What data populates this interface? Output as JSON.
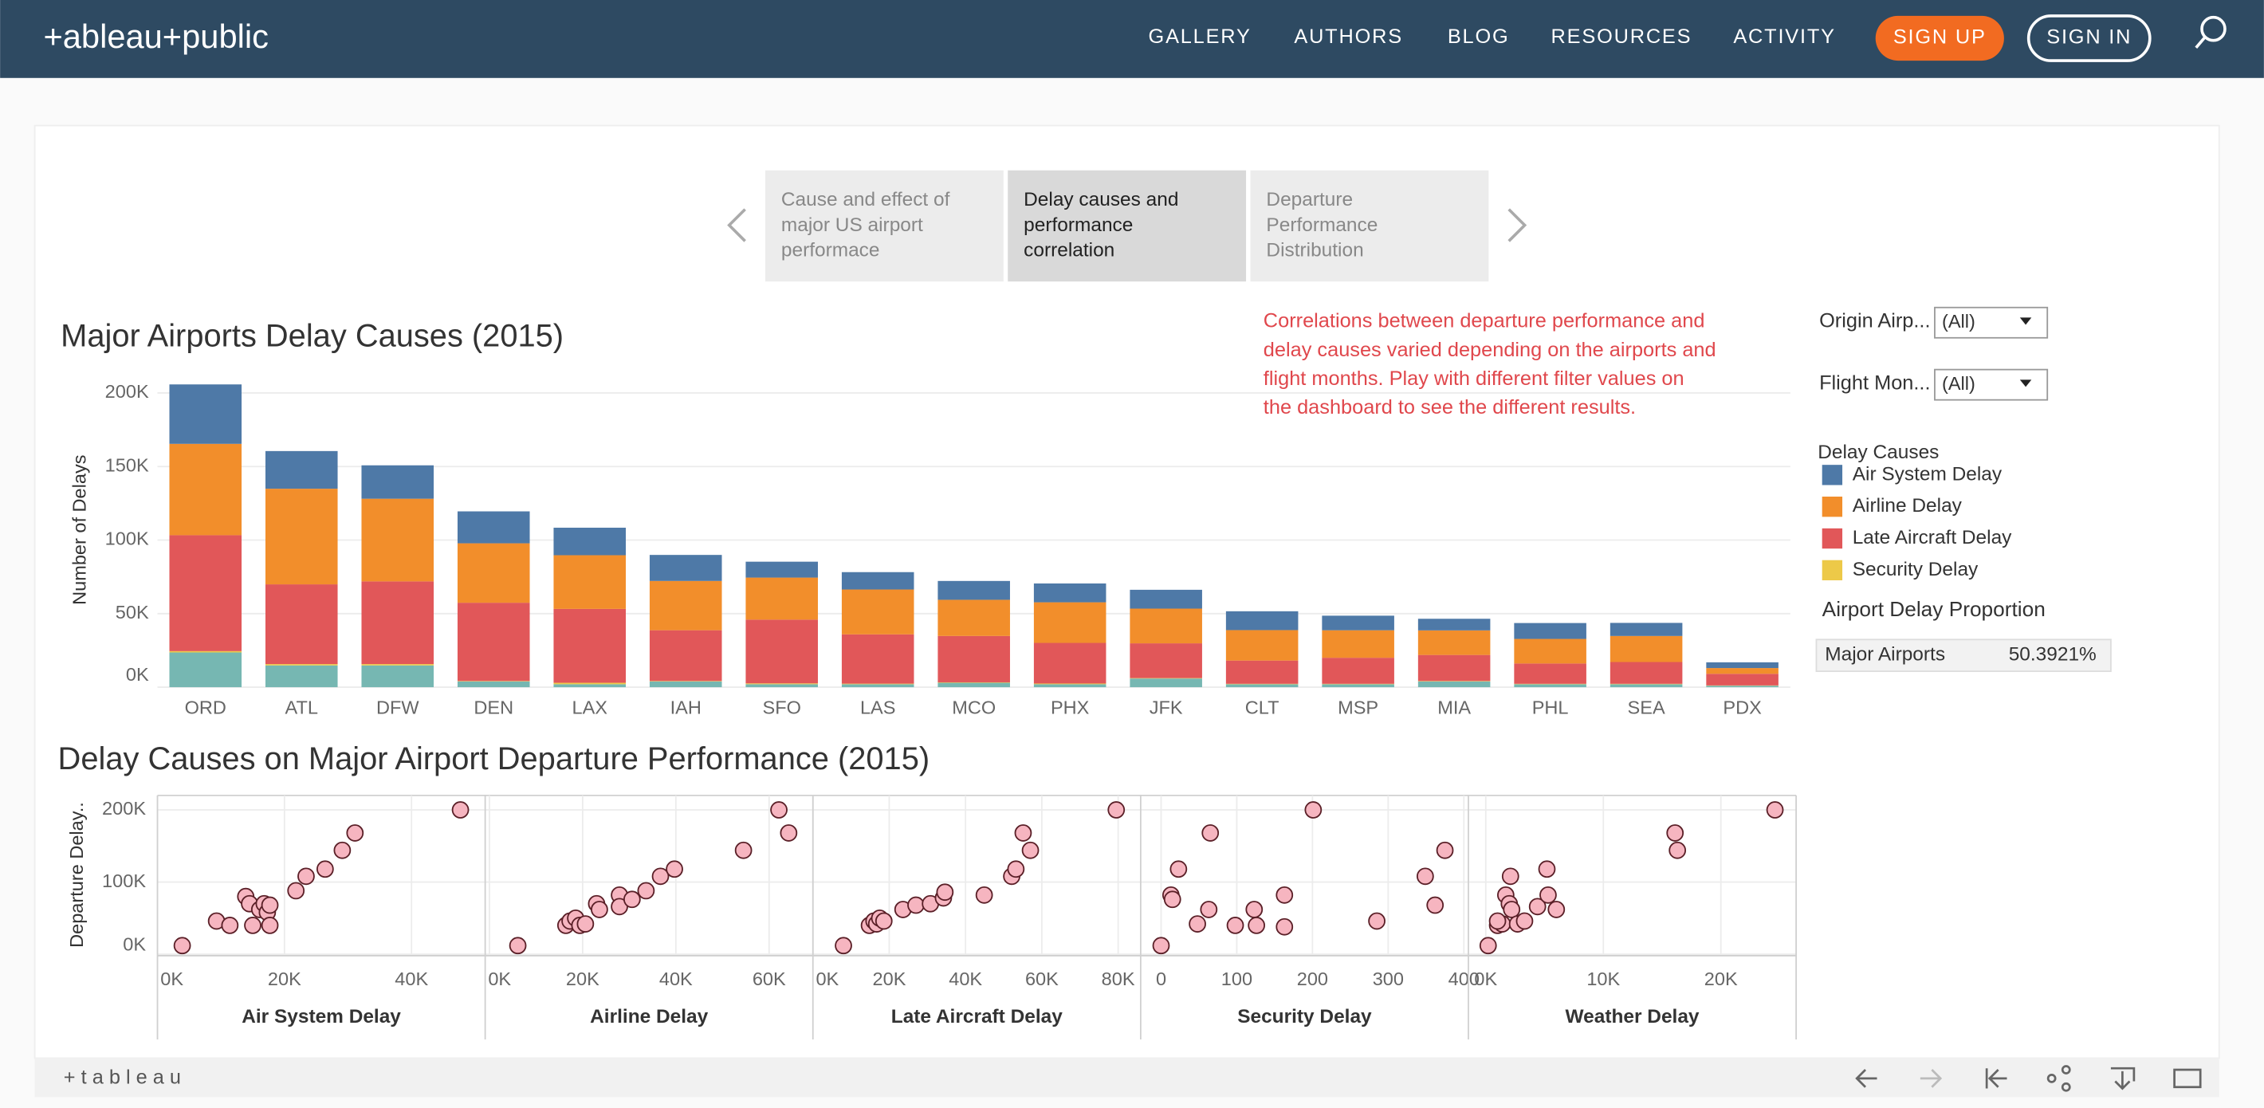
{
  "header": {
    "logo": "+ableau+public",
    "nav": [
      "GALLERY",
      "AUTHORS",
      "BLOG",
      "RESOURCES",
      "ACTIVITY"
    ],
    "sign_up": "SIGN UP",
    "sign_in": "SIGN IN"
  },
  "story_points": [
    [
      "Cause and effect of",
      "major US airport",
      "performace"
    ],
    [
      "Delay causes and",
      "performance",
      "correlation"
    ],
    [
      "Departure",
      "Performance",
      "Distribution"
    ]
  ],
  "annotation": [
    "Correlations between departure performance and",
    "delay causes varied depending on the airports and",
    "flight months. Play with different filter values on",
    "the dashboard to see the different results."
  ],
  "filters": [
    {
      "label": "Origin Airp...",
      "value": "(All)"
    },
    {
      "label": "Flight Mon...",
      "value": "(All)"
    }
  ],
  "proportion_table": {
    "title": "Airport Delay Proportion",
    "rows": [
      [
        "Major Airports",
        "50.3921%"
      ]
    ]
  },
  "footer": {
    "logo": "+ t a b l e a u"
  },
  "chart_data": [
    {
      "type": "stacked_bar",
      "title": "Major Airports Delay Causes (2015)",
      "y_label": "Number of Delays",
      "legend_title": "Delay Causes",
      "grid": true,
      "categories": [
        "ORD",
        "ATL",
        "DFW",
        "DEN",
        "LAX",
        "IAH",
        "SFO",
        "LAS",
        "MCO",
        "PHX",
        "JFK",
        "CLT",
        "MSP",
        "MIA",
        "PHL",
        "SEA",
        "PDX"
      ],
      "ylim": [
        0,
        210000
      ],
      "yticks": [
        {
          "value": 0,
          "label": "0K"
        },
        {
          "value": 50000,
          "label": "50K"
        },
        {
          "value": 100000,
          "label": "100K"
        },
        {
          "value": 150000,
          "label": "150K"
        },
        {
          "value": 200000,
          "label": "200K"
        }
      ],
      "series": [
        {
          "name": "Air System Delay",
          "color": "#4e79a7",
          "values": [
            40400,
            25600,
            22700,
            21700,
            18700,
            17700,
            10800,
            11800,
            12800,
            12800,
            12800,
            12800,
            9900,
            7900,
            10800,
            8900,
            3900
          ]
        },
        {
          "name": "Airline Delay",
          "color": "#f28e2b",
          "values": [
            62100,
            65000,
            56200,
            40400,
            36500,
            33500,
            28600,
            30500,
            24600,
            27600,
            23600,
            20700,
            18700,
            16700,
            16700,
            17700,
            3900
          ]
        },
        {
          "name": "Late Aircraft Delay",
          "color": "#e15759",
          "values": [
            78800,
            54200,
            56200,
            53200,
            50200,
            34500,
            43300,
            33500,
            31500,
            27600,
            23600,
            15800,
            17700,
            17700,
            13800,
            14800,
            7900
          ]
        },
        {
          "name": "Security Delay",
          "color": "#edc948",
          "values": [
            900,
            900,
            900,
            300,
            1000,
            300,
            600,
            400,
            300,
            500,
            300,
            300,
            300,
            300,
            300,
            300,
            200
          ]
        },
        {
          "name": "Weather Delay",
          "color": "#76b7b2",
          "values": [
            23600,
            14800,
            14800,
            3900,
            2000,
            3900,
            2000,
            2000,
            3000,
            2000,
            5900,
            2000,
            2000,
            3900,
            2000,
            2000,
            1000
          ]
        }
      ]
    },
    {
      "type": "scatter_panels",
      "title": "Delay Causes on Major Airport Departure Performance (2015)",
      "y_label": "Departure Delay..",
      "grid": true,
      "color": "#f6b5c0",
      "ylim": [
        0,
        220000
      ],
      "yticks": [
        {
          "value": 0,
          "label": "0K"
        },
        {
          "value": 100000,
          "label": "100K"
        },
        {
          "value": 200000,
          "label": "200K"
        }
      ],
      "panels": [
        {
          "x_label": "Air System Delay",
          "xlim": [
            0,
            51600
          ],
          "xticks": [
            {
              "value": 0,
              "label": "0K"
            },
            {
              "value": 20000,
              "label": "20K"
            },
            {
              "value": 40000,
              "label": "40K"
            }
          ],
          "x": [
            3900,
            9300,
            11400,
            13900,
            14500,
            15000,
            16100,
            16800,
            17300,
            17700,
            17700,
            21800,
            23400,
            26400,
            29100,
            31100,
            47700
          ],
          "y": [
            12000,
            46000,
            40000,
            80000,
            70000,
            40000,
            62000,
            70000,
            58000,
            68000,
            40000,
            88000,
            108000,
            118000,
            144000,
            168000,
            200000
          ]
        },
        {
          "x_label": "Airline Delay",
          "xlim": [
            -900,
            69400
          ],
          "xticks": [
            {
              "value": 0,
              "label": "0K"
            },
            {
              "value": 20000,
              "label": "20K"
            },
            {
              "value": 40000,
              "label": "40K"
            },
            {
              "value": 60000,
              "label": "60K"
            }
          ],
          "x": [
            6100,
            16400,
            17300,
            18500,
            19400,
            20600,
            23000,
            23600,
            27900,
            27900,
            30600,
            33600,
            36700,
            39700,
            54500,
            62100,
            64200
          ],
          "y": [
            12000,
            40000,
            46000,
            50000,
            40000,
            42000,
            70000,
            62000,
            82000,
            66000,
            76000,
            88000,
            108000,
            118000,
            144000,
            200000,
            168000
          ]
        },
        {
          "x_label": "Late Aircraft Delay",
          "xlim": [
            0,
            85900
          ],
          "xticks": [
            {
              "value": 0,
              "label": "0K"
            },
            {
              "value": 20000,
              "label": "20K"
            },
            {
              "value": 40000,
              "label": "40K"
            },
            {
              "value": 60000,
              "label": "60K"
            },
            {
              "value": 80000,
              "label": "80K"
            }
          ],
          "x": [
            8000,
            14800,
            16000,
            16700,
            17500,
            18600,
            23600,
            27000,
            30800,
            34200,
            34600,
            44900,
            52100,
            53200,
            55100,
            57000,
            79500
          ],
          "y": [
            12000,
            40000,
            46000,
            42000,
            50000,
            46000,
            62000,
            68000,
            70000,
            78000,
            86000,
            82000,
            108000,
            118000,
            168000,
            144000,
            200000
          ]
        },
        {
          "x_label": "Security Delay",
          "xlim": [
            -27,
            406
          ],
          "xticks": [
            0,
            100,
            200,
            300,
            400
          ],
          "x": [
            0,
            13,
            15,
            23,
            48,
            63,
            65,
            98,
            123,
            126,
            163,
            163,
            201,
            285,
            349,
            362,
            375
          ],
          "y": [
            12000,
            82000,
            76000,
            118000,
            42000,
            62000,
            168000,
            40000,
            62000,
            40000,
            82000,
            38000,
            200000,
            46000,
            108000,
            68000,
            144000
          ]
        },
        {
          "x_label": "Weather Delay",
          "xlim": [
            -1480,
            26400
          ],
          "xticks": [
            {
              "value": 0,
              "label": "0K"
            },
            {
              "value": 10000,
              "label": "10K"
            },
            {
              "value": 20000,
              "label": "20K"
            }
          ],
          "x": [
            200,
            1000,
            1400,
            1700,
            2000,
            2100,
            2200,
            2700,
            3300,
            4400,
            5200,
            5300,
            6000,
            16100,
            16300,
            24600,
            1000
          ],
          "y": [
            12000,
            40000,
            42000,
            82000,
            70000,
            108000,
            62000,
            42000,
            46000,
            66000,
            118000,
            82000,
            62000,
            168000,
            144000,
            200000,
            46000
          ]
        }
      ]
    }
  ]
}
